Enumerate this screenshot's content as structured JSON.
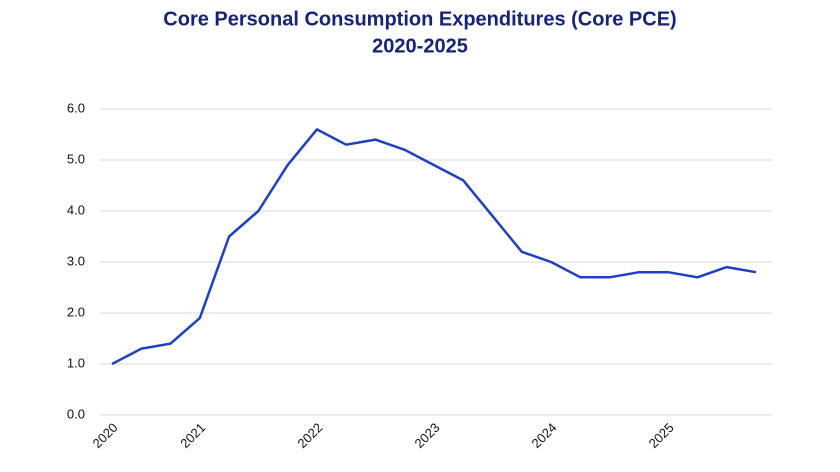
{
  "chart_data": {
    "type": "line",
    "title": [
      "Core Personal Consumption Expenditures (Core PCE)",
      "2020-2025"
    ],
    "categories": [
      "2020",
      null,
      null,
      "2021",
      null,
      null,
      null,
      "2022",
      null,
      null,
      null,
      "2023",
      null,
      null,
      null,
      "2024",
      null,
      null,
      null,
      "2025",
      null,
      null,
      null
    ],
    "series": [
      {
        "name": "Core PCE",
        "color": "#1f3fc4",
        "values": [
          1.0,
          1.3,
          1.4,
          1.9,
          3.5,
          4.0,
          4.9,
          5.6,
          5.3,
          5.4,
          5.2,
          4.9,
          4.6,
          3.9,
          3.2,
          3.0,
          2.7,
          2.7,
          2.8,
          2.8,
          2.7,
          2.9,
          2.8
        ]
      }
    ],
    "ylim": [
      0,
      6
    ],
    "yticks": [
      {
        "value": 0,
        "label": "0.0"
      },
      {
        "value": 1,
        "label": "1.0"
      },
      {
        "value": 2,
        "label": "2.0"
      },
      {
        "value": 3,
        "label": "3.0"
      },
      {
        "value": 4,
        "label": "4.0"
      },
      {
        "value": 5,
        "label": "5.0"
      },
      {
        "value": 6,
        "label": "6.0"
      }
    ],
    "grid": true
  }
}
